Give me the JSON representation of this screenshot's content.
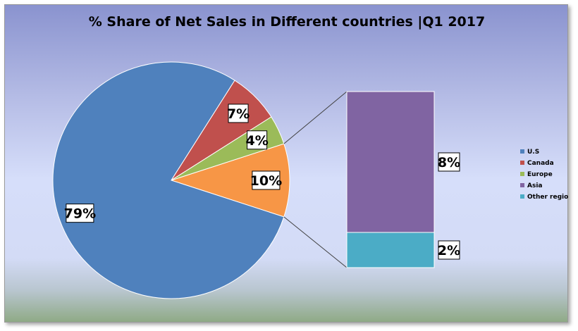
{
  "chart_data": {
    "type": "bar-of-pie",
    "title": "% Share of Net Sales in Different countries |Q1 2017",
    "categories": [
      "U.S",
      "Canada",
      "Europe",
      "Asia",
      "Other regions"
    ],
    "values": [
      79,
      7,
      4,
      8,
      2
    ],
    "data_labels": [
      "79%",
      "7%",
      "4%",
      "8%",
      "2%"
    ],
    "pie_slice_labels": [
      "79%",
      "7%",
      "4%",
      "10%"
    ],
    "secondary_bar": {
      "categories": [
        "Asia",
        "Other regions"
      ],
      "values": [
        8,
        2
      ]
    },
    "colors": [
      "#4f81bd",
      "#c0504d",
      "#9bbb59",
      "#8064a2",
      "#4bacc6"
    ],
    "combined_color": "#f79646",
    "legend_position": "right"
  }
}
